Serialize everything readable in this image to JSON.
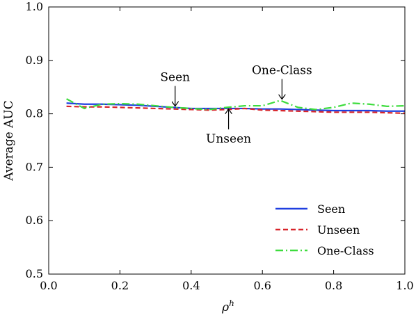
{
  "chart_data": {
    "type": "line",
    "xlabel": "ρ",
    "xlabel_sup": "h",
    "ylabel": "Average AUC",
    "xlim": [
      0.0,
      1.0
    ],
    "ylim": [
      0.5,
      1.0
    ],
    "xticks": [
      0.0,
      0.2,
      0.4,
      0.6,
      0.8,
      1.0
    ],
    "xtick_labels": [
      "0.0",
      "0.2",
      "0.4",
      "0.6",
      "0.8",
      "1.0"
    ],
    "yticks": [
      0.5,
      0.6,
      0.7,
      0.8,
      0.9,
      1.0
    ],
    "ytick_labels": [
      "0.5",
      "0.6",
      "0.7",
      "0.8",
      "0.9",
      "1.0"
    ],
    "grid": false,
    "legend_position": "bottom-right",
    "series": [
      {
        "name": "Seen",
        "color": "#1f3fe0",
        "style": "solid",
        "x": [
          0.05,
          0.1,
          0.15,
          0.2,
          0.25,
          0.3,
          0.35,
          0.4,
          0.45,
          0.5,
          0.55,
          0.6,
          0.65,
          0.7,
          0.75,
          0.8,
          0.85,
          0.9,
          0.95,
          1.0
        ],
        "y": [
          0.82,
          0.818,
          0.818,
          0.817,
          0.816,
          0.814,
          0.812,
          0.81,
          0.81,
          0.81,
          0.81,
          0.809,
          0.809,
          0.808,
          0.807,
          0.806,
          0.806,
          0.806,
          0.805,
          0.805
        ]
      },
      {
        "name": "Unseen",
        "color": "#d8242a",
        "style": "dashed",
        "x": [
          0.05,
          0.1,
          0.15,
          0.2,
          0.25,
          0.3,
          0.35,
          0.4,
          0.45,
          0.5,
          0.55,
          0.6,
          0.65,
          0.7,
          0.75,
          0.8,
          0.85,
          0.9,
          0.95,
          1.0
        ],
        "y": [
          0.814,
          0.813,
          0.813,
          0.812,
          0.811,
          0.81,
          0.809,
          0.808,
          0.807,
          0.808,
          0.81,
          0.807,
          0.806,
          0.805,
          0.804,
          0.803,
          0.803,
          0.803,
          0.802,
          0.801
        ]
      },
      {
        "name": "One-Class",
        "color": "#3ddc3d",
        "style": "dashdot",
        "x": [
          0.05,
          0.1,
          0.15,
          0.2,
          0.25,
          0.3,
          0.35,
          0.4,
          0.45,
          0.5,
          0.55,
          0.6,
          0.65,
          0.7,
          0.75,
          0.8,
          0.85,
          0.9,
          0.95,
          1.0
        ],
        "y": [
          0.828,
          0.81,
          0.818,
          0.819,
          0.818,
          0.815,
          0.812,
          0.81,
          0.808,
          0.812,
          0.815,
          0.815,
          0.825,
          0.812,
          0.808,
          0.812,
          0.82,
          0.818,
          0.814,
          0.815
        ]
      }
    ],
    "annotations": [
      {
        "text": "Seen",
        "arrow_to": [
          0.355,
          0.813
        ],
        "placement": "above"
      },
      {
        "text": "Unseen",
        "arrow_to": [
          0.505,
          0.81
        ],
        "placement": "below"
      },
      {
        "text": "One-Class",
        "arrow_to": [
          0.655,
          0.826
        ],
        "placement": "above"
      }
    ]
  }
}
